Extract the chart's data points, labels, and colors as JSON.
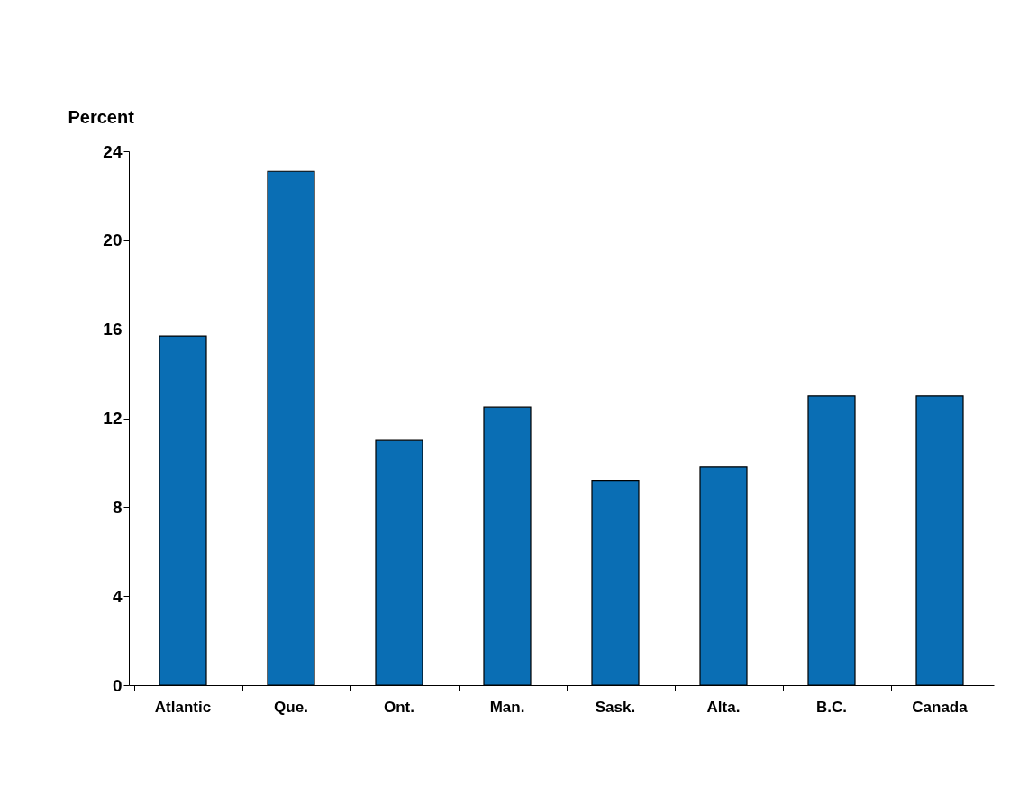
{
  "chart_data": {
    "type": "bar",
    "ylabel": "Percent",
    "categories": [
      "Atlantic",
      "Que.",
      "Ont.",
      "Man.",
      "Sask.",
      "Alta.",
      "B.C.",
      "Canada"
    ],
    "values": [
      15.7,
      23.1,
      11.0,
      12.5,
      9.2,
      9.8,
      13.0,
      13.0
    ],
    "color": "#0a6eb4",
    "ylim": [
      0,
      24
    ],
    "yticks": [
      0,
      4,
      8,
      12,
      16,
      20,
      24
    ],
    "grid": false
  }
}
